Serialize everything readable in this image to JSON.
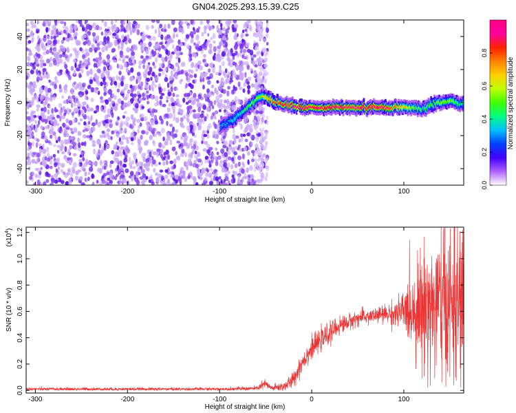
{
  "title": "GN04.2025.293.15.39.C25",
  "chart_data": [
    {
      "type": "heatmap",
      "xlabel": "Height of straight line (km)",
      "ylabel": "Frequency (Hz)",
      "xlim": [
        -310,
        165
      ],
      "ylim": [
        -50,
        50
      ],
      "xticks": [
        "-300",
        "-200",
        "-100",
        "0",
        "100"
      ],
      "xtick_values": [
        -300,
        -200,
        -100,
        0,
        100
      ],
      "yticks": [
        "40",
        "20",
        "0",
        "-20",
        "-40"
      ],
      "ytick_values": [
        40,
        20,
        0,
        -20,
        -40
      ],
      "colorbar": {
        "label": "Normalized spectral amplitude",
        "range": [
          0,
          1
        ],
        "ticks": [
          "0.0",
          "0.2",
          "0.4",
          "0.6",
          "0.8"
        ],
        "tick_values": [
          0.0,
          0.2,
          0.4,
          0.6,
          0.8
        ],
        "colors": [
          "#ffffff",
          "#b060ff",
          "#4000ff",
          "#0040ff",
          "#00c0ff",
          "#00ff80",
          "#40ff00",
          "#c0ff00",
          "#ffd000",
          "#ff8000",
          "#ff2000",
          "#ff00a0",
          "#ff0080"
        ]
      },
      "noise_region_km": [
        -310,
        -48
      ],
      "ridge": {
        "x": [
          -100,
          -90,
          -80,
          -70,
          -60,
          -55,
          -50,
          -40,
          -30,
          -20,
          -10,
          0,
          20,
          40,
          60,
          80,
          100,
          110,
          120,
          130,
          140,
          150,
          160,
          165
        ],
        "y": [
          -15,
          -12,
          -8,
          -3,
          2,
          4,
          3,
          0,
          -1,
          -2,
          -3,
          -3,
          -3,
          -3,
          -3,
          -3,
          -3,
          -3,
          -4,
          -1,
          0,
          1,
          -1,
          0
        ],
        "amplitude": [
          0.3,
          0.35,
          0.4,
          0.5,
          0.55,
          0.6,
          0.7,
          0.85,
          0.9,
          0.9,
          0.95,
          0.9,
          0.95,
          0.9,
          0.95,
          0.9,
          0.7,
          0.55,
          0.45,
          0.5,
          0.55,
          0.55,
          0.45,
          0.4
        ]
      }
    },
    {
      "type": "line",
      "xlabel": "Height of straight line (km)",
      "ylabel": "SNR (10 * v/v)",
      "scale_label": "(x10",
      "scale_exp": "4",
      "scale_close": ")",
      "xlim": [
        -310,
        165
      ],
      "ylim": [
        -0.02,
        1.24
      ],
      "xticks": [
        "-300",
        "-200",
        "-100",
        "0",
        "100"
      ],
      "xtick_values": [
        -300,
        -200,
        -100,
        0,
        100
      ],
      "yticks": [
        "0.0",
        "0.2",
        "0.4",
        "0.6",
        "0.8",
        "1.0",
        "1.2"
      ],
      "ytick_values": [
        0.0,
        0.2,
        0.4,
        0.6,
        0.8,
        1.0,
        1.2
      ],
      "color": "#ee3333",
      "x": [
        -310,
        -200,
        -100,
        -60,
        -50,
        -45,
        -40,
        -30,
        -20,
        -10,
        0,
        10,
        20,
        30,
        40,
        50,
        60,
        70,
        80,
        90,
        100,
        110,
        120,
        130,
        140,
        150,
        160,
        165
      ],
      "y": [
        0.01,
        0.01,
        0.01,
        0.015,
        0.05,
        0.02,
        0.02,
        0.03,
        0.08,
        0.22,
        0.32,
        0.38,
        0.44,
        0.49,
        0.52,
        0.55,
        0.56,
        0.57,
        0.58,
        0.58,
        0.6,
        0.62,
        0.63,
        0.64,
        0.64,
        0.65,
        0.64,
        0.66
      ],
      "noise": [
        0.006,
        0.006,
        0.006,
        0.008,
        0.02,
        0.01,
        0.015,
        0.02,
        0.03,
        0.04,
        0.04,
        0.04,
        0.04,
        0.035,
        0.03,
        0.03,
        0.03,
        0.03,
        0.035,
        0.05,
        0.08,
        0.15,
        0.22,
        0.28,
        0.3,
        0.3,
        0.3,
        0.3
      ]
    }
  ]
}
